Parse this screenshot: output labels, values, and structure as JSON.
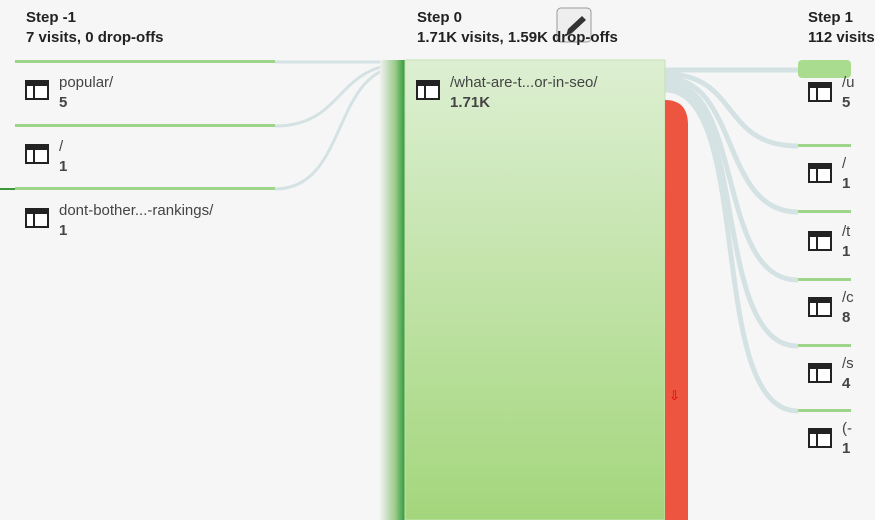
{
  "steps": [
    {
      "title": "Step -1",
      "summary": "7 visits, 0 drop-offs",
      "nodes": [
        {
          "label": "popular/",
          "count": "5"
        },
        {
          "label": "/",
          "count": "1"
        },
        {
          "label": "dont-bother...-rankings/",
          "count": "1"
        }
      ]
    },
    {
      "title": "Step 0",
      "summary": "1.71K visits, 1.59K drop-offs",
      "nodes": [
        {
          "label": "/what-are-t...or-in-seo/",
          "count": "1.71K"
        }
      ],
      "dropoff_marker": "⇩"
    },
    {
      "title": "Step 1",
      "summary": "112 visits",
      "nodes": [
        {
          "label": "/u",
          "count": "5"
        },
        {
          "label": "/",
          "count": "1"
        },
        {
          "label": "/t",
          "count": "1"
        },
        {
          "label": "/c",
          "count": "8"
        },
        {
          "label": "/s",
          "count": "4"
        },
        {
          "label": "(-",
          "count": "1"
        }
      ]
    }
  ]
}
